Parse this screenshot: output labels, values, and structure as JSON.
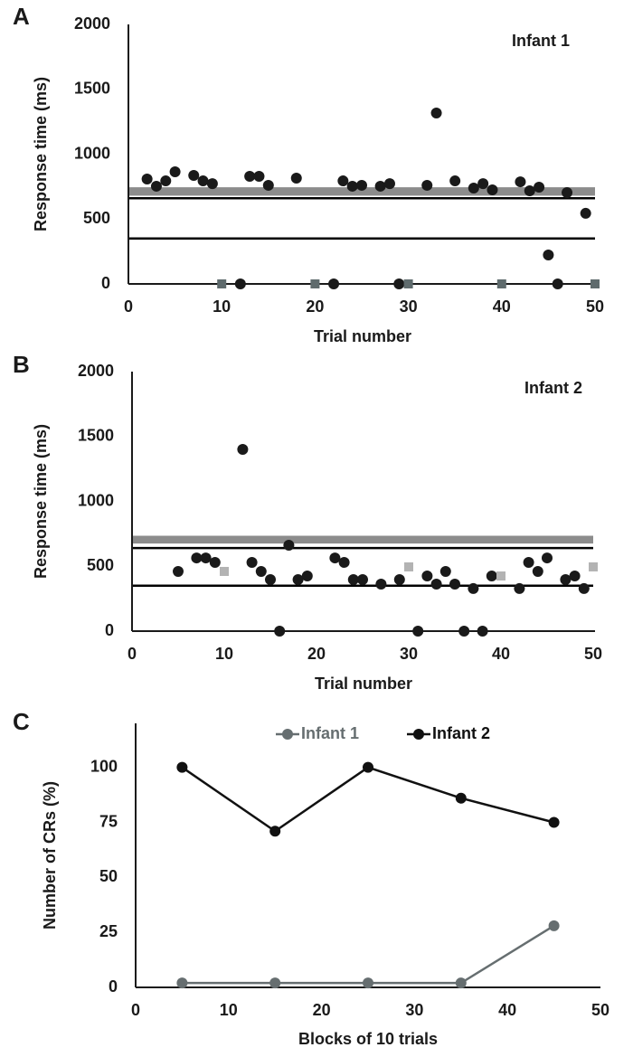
{
  "chart_data": [
    {
      "type": "scatter",
      "panel_label": "A",
      "annotation": "Infant 1",
      "y_label": "Response time (ms)",
      "x_label": "Trial number",
      "xlim": [
        0,
        50
      ],
      "xticks": [
        0,
        10,
        20,
        30,
        40,
        50
      ],
      "ylim": [
        0,
        2000
      ],
      "yticks": [
        0,
        500,
        1000,
        1500,
        2000
      ],
      "bands": [
        {
          "from": 680,
          "to": 745,
          "color": "#8c8c8c"
        }
      ],
      "hlines": [
        660,
        350
      ],
      "hline_color": "#000000",
      "series": [
        {
          "marker": "circle",
          "color": "#1a1a1a",
          "x": [
            2,
            3,
            4,
            5,
            7,
            8,
            9,
            12,
            13,
            14,
            15,
            18,
            22,
            23,
            24,
            25,
            27,
            28,
            29,
            32,
            33,
            35,
            37,
            38,
            39,
            42,
            43,
            44,
            45,
            46,
            47,
            49
          ],
          "values": [
            808,
            753,
            794,
            864,
            836,
            794,
            773,
            0,
            829,
            829,
            760,
            815,
            0,
            794,
            753,
            760,
            753,
            773,
            0,
            760,
            1317,
            794,
            739,
            773,
            725,
            787,
            718,
            746,
            223,
            0,
            704,
            544
          ]
        },
        {
          "marker": "square",
          "color": "#5f6b6d",
          "x": [
            10,
            20,
            30,
            40,
            50
          ],
          "values": [
            0,
            0,
            0,
            0,
            0
          ]
        }
      ]
    },
    {
      "type": "scatter",
      "panel_label": "B",
      "annotation": "Infant 2",
      "y_label": "Response time (ms)",
      "x_label": "Trial number",
      "xlim": [
        0,
        50
      ],
      "xticks": [
        0,
        10,
        20,
        30,
        40,
        50
      ],
      "ylim": [
        0,
        2000
      ],
      "yticks": [
        0,
        500,
        1000,
        1500,
        2000
      ],
      "bands": [
        {
          "from": 675,
          "to": 735,
          "color": "#8c8c8c"
        }
      ],
      "hlines": [
        640,
        350
      ],
      "hline_color": "#000000",
      "series": [
        {
          "marker": "circle",
          "color": "#1a1a1a",
          "x": [
            5,
            7,
            8,
            9,
            12,
            13,
            14,
            15,
            16,
            17,
            18,
            19,
            22,
            23,
            24,
            25,
            27,
            29,
            31,
            32,
            33,
            34,
            35,
            36,
            37,
            38,
            39,
            42,
            43,
            44,
            45,
            47,
            48,
            49
          ],
          "values": [
            460,
            564,
            564,
            530,
            1401,
            530,
            460,
            397,
            0,
            662,
            397,
            425,
            564,
            530,
            397,
            397,
            362,
            397,
            0,
            425,
            362,
            460,
            362,
            0,
            328,
            0,
            425,
            328,
            530,
            460,
            564,
            397,
            425,
            328
          ]
        },
        {
          "marker": "square",
          "color": "#b3b3b3",
          "x": [
            10,
            30,
            40,
            50
          ],
          "values": [
            460,
            495,
            425,
            495
          ]
        }
      ]
    },
    {
      "type": "line",
      "panel_label": "C",
      "y_label": "Number of CRs (%)",
      "x_label": "Blocks of 10 trials",
      "xlim": [
        0,
        50
      ],
      "xticks": [
        0,
        10,
        20,
        30,
        40,
        50
      ],
      "ylim": [
        0,
        120
      ],
      "yticks": [
        0,
        25,
        50,
        75,
        100
      ],
      "x": [
        5,
        15,
        25,
        35,
        45
      ],
      "series": [
        {
          "name": "Infant 1",
          "color": "#666e70",
          "values": [
            2,
            2,
            2,
            2,
            28
          ]
        },
        {
          "name": "Infant 2",
          "color": "#111111",
          "values": [
            100,
            71,
            100,
            86,
            75
          ]
        }
      ]
    }
  ]
}
